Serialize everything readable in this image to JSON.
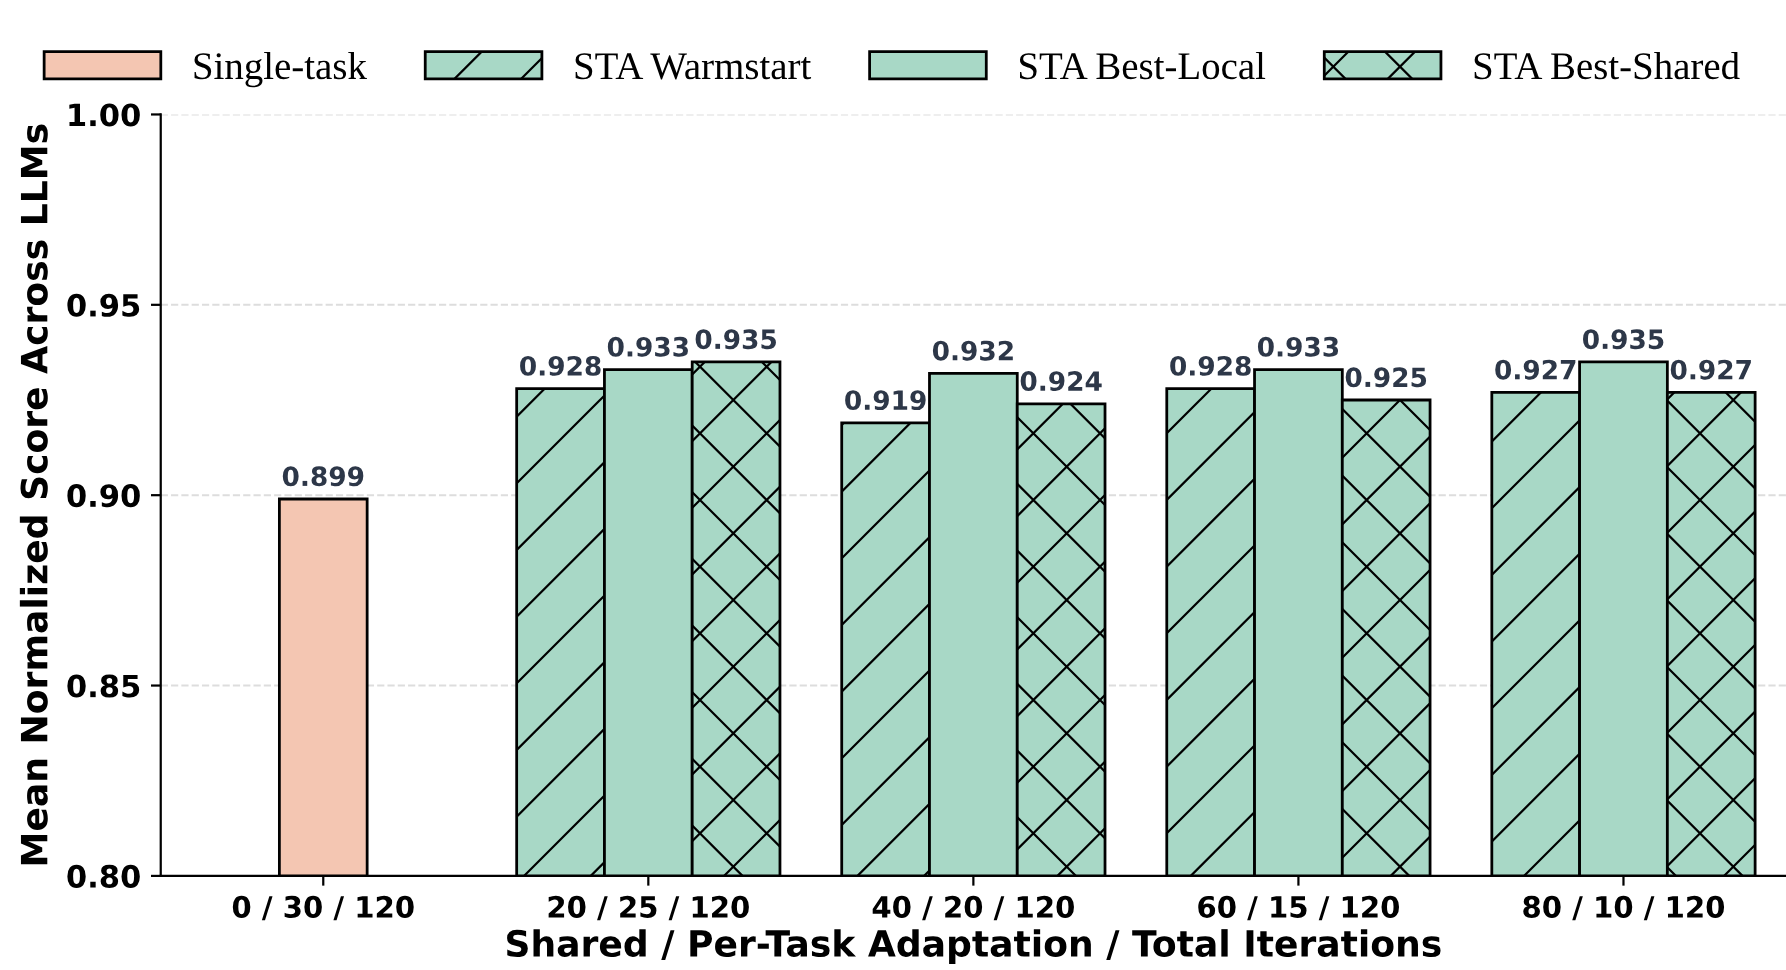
{
  "chart_data": {
    "type": "bar",
    "xlabel": "Shared / Per-Task Adaptation / Total Iterations",
    "ylabel": "Mean Normalized Score Across LLMs",
    "categories": [
      "0 / 30 / 120",
      "20 / 25 / 120",
      "40 / 20 / 120",
      "60 / 15 / 120",
      "80 / 10 / 120"
    ],
    "series": [
      {
        "name": "Single-task",
        "color": "#f4c6b2",
        "values": [
          0.899,
          null,
          null,
          null,
          null
        ]
      },
      {
        "name": "STA Warmstart",
        "color": "#a8d8c6",
        "values": [
          null,
          0.928,
          0.919,
          0.928,
          0.927
        ]
      },
      {
        "name": "STA Best-Local",
        "color": "#a8d8c6",
        "values": [
          null,
          0.933,
          0.932,
          0.933,
          0.935
        ]
      },
      {
        "name": "STA Best-Shared",
        "color": "#a8d8c6",
        "values": [
          null,
          0.935,
          0.924,
          0.925,
          0.927
        ]
      }
    ],
    "ylim": [
      0.8,
      1.0
    ],
    "yticks": [
      {
        "value": 0.8,
        "label": "0.80"
      },
      {
        "value": 0.85,
        "label": "0.85"
      },
      {
        "value": 0.9,
        "label": "0.90"
      },
      {
        "value": 0.95,
        "label": "0.95"
      },
      {
        "value": 1.0,
        "label": "1.00"
      }
    ],
    "grid": "y",
    "legend": "top",
    "data_labels": true
  }
}
